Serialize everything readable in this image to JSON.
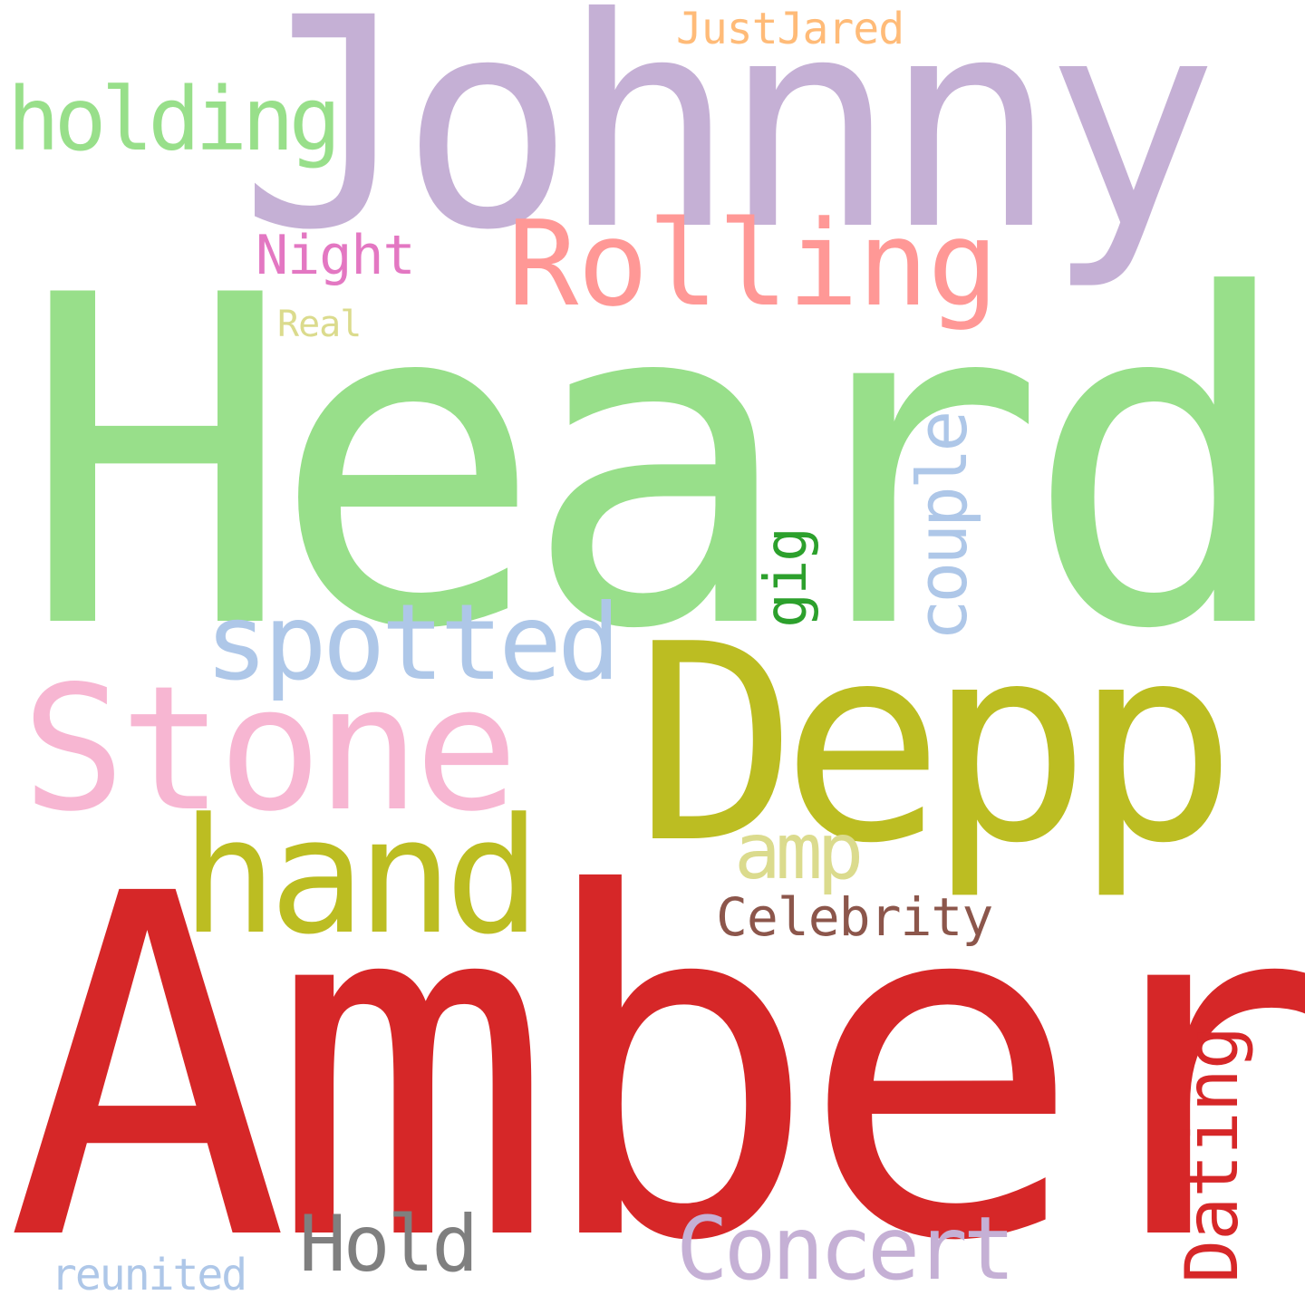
{
  "words": {
    "heard": {
      "text": "Heard",
      "color": "#98df8a",
      "orientation": "horizontal"
    },
    "amber": {
      "text": "Amber",
      "color": "#d62728",
      "orientation": "horizontal"
    },
    "johnny": {
      "text": "Johnny",
      "color": "#c5b0d5",
      "orientation": "horizontal"
    },
    "depp": {
      "text": "Depp",
      "color": "#bcbd22",
      "orientation": "horizontal"
    },
    "stone": {
      "text": "Stone",
      "color": "#f7b6d2",
      "orientation": "horizontal"
    },
    "hand": {
      "text": "hand",
      "color": "#bcbd22",
      "orientation": "horizontal"
    },
    "rolling": {
      "text": "Rolling",
      "color": "#ff9896",
      "orientation": "horizontal"
    },
    "spotted": {
      "text": "spotted",
      "color": "#aec7e8",
      "orientation": "horizontal"
    },
    "holding": {
      "text": "holding",
      "color": "#98df8a",
      "orientation": "horizontal"
    },
    "concert": {
      "text": "Concert",
      "color": "#c5b0d5",
      "orientation": "horizontal"
    },
    "hold": {
      "text": "Hold",
      "color": "#7f7f7f",
      "orientation": "horizontal"
    },
    "amp": {
      "text": "amp",
      "color": "#dbdb8d",
      "orientation": "horizontal"
    },
    "celebrity": {
      "text": "Celebrity",
      "color": "#8c564b",
      "orientation": "horizontal"
    },
    "night": {
      "text": "Night",
      "color": "#e377c2",
      "orientation": "horizontal"
    },
    "justjared": {
      "text": "JustJared",
      "color": "#ffbb78",
      "orientation": "horizontal"
    },
    "reunited": {
      "text": "reunited",
      "color": "#aec7e8",
      "orientation": "horizontal"
    },
    "real": {
      "text": "Real",
      "color": "#dbdb8d",
      "orientation": "horizontal"
    },
    "couple": {
      "text": "couple",
      "color": "#aec7e8",
      "orientation": "vertical"
    },
    "dating": {
      "text": "Dating",
      "color": "#d62728",
      "orientation": "vertical"
    },
    "gig": {
      "text": "gig",
      "color": "#2ca02c",
      "orientation": "vertical"
    }
  }
}
